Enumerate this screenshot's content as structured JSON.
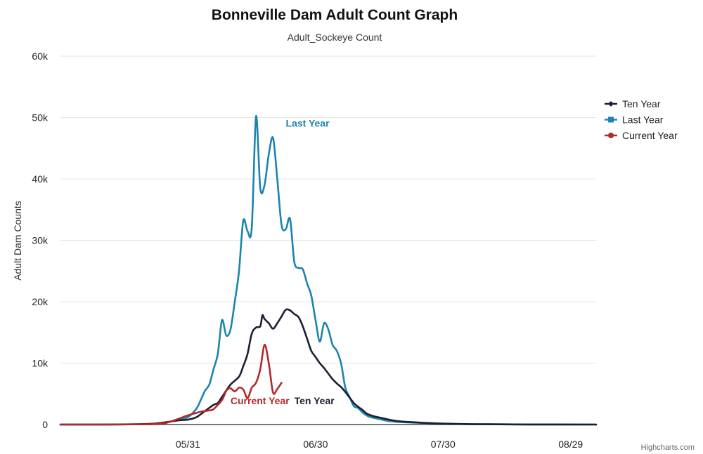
{
  "chart_data": {
    "type": "line",
    "title": "Bonneville Dam Adult Count Graph",
    "subtitle": "Adult_Sockeye Count",
    "ylabel": "Adult Dam Counts",
    "ylim": [
      0,
      60000
    ],
    "yticks": [
      {
        "value": 0,
        "label": "0"
      },
      {
        "value": 10000,
        "label": "10k"
      },
      {
        "value": 20000,
        "label": "20k"
      },
      {
        "value": 30000,
        "label": "30k"
      },
      {
        "value": 40000,
        "label": "40k"
      },
      {
        "value": 50000,
        "label": "50k"
      },
      {
        "value": 60000,
        "label": "60k"
      }
    ],
    "xlim": [
      0,
      126
    ],
    "xunit": "days since 05/01",
    "xticks": [
      {
        "day": 30,
        "label": "05/31"
      },
      {
        "day": 60,
        "label": "06/30"
      },
      {
        "day": 90,
        "label": "07/30"
      },
      {
        "day": 120,
        "label": "08/29"
      }
    ],
    "series": [
      {
        "name": "Ten Year",
        "color": "#1c1f33",
        "annotation": "Ten Year",
        "points": [
          [
            0,
            0
          ],
          [
            10,
            0
          ],
          [
            18,
            50
          ],
          [
            22,
            150
          ],
          [
            24,
            300
          ],
          [
            26,
            500
          ],
          [
            28,
            700
          ],
          [
            30,
            800
          ],
          [
            32,
            1200
          ],
          [
            34,
            2200
          ],
          [
            36,
            3200
          ],
          [
            37,
            3500
          ],
          [
            38,
            4500
          ],
          [
            40,
            6500
          ],
          [
            42,
            7800
          ],
          [
            43,
            9500
          ],
          [
            44,
            11500
          ],
          [
            45,
            14800
          ],
          [
            46,
            15800
          ],
          [
            47,
            16000
          ],
          [
            47.5,
            17800
          ],
          [
            48,
            17200
          ],
          [
            49,
            16500
          ],
          [
            50,
            15600
          ],
          [
            51,
            16500
          ],
          [
            52,
            17600
          ],
          [
            53,
            18700
          ],
          [
            54,
            18600
          ],
          [
            55,
            18000
          ],
          [
            56,
            17500
          ],
          [
            57,
            16000
          ],
          [
            58,
            14000
          ],
          [
            59,
            12000
          ],
          [
            60,
            11000
          ],
          [
            61,
            10000
          ],
          [
            62,
            9200
          ],
          [
            63,
            8300
          ],
          [
            64,
            7400
          ],
          [
            65,
            6700
          ],
          [
            66,
            6100
          ],
          [
            67,
            5300
          ],
          [
            68,
            4400
          ],
          [
            69,
            3500
          ],
          [
            70,
            2900
          ],
          [
            71,
            2400
          ],
          [
            72,
            1800
          ],
          [
            73,
            1500
          ],
          [
            74,
            1300
          ],
          [
            76,
            1000
          ],
          [
            78,
            700
          ],
          [
            80,
            500
          ],
          [
            85,
            300
          ],
          [
            90,
            150
          ],
          [
            95,
            80
          ],
          [
            100,
            40
          ],
          [
            110,
            15
          ],
          [
            126,
            0
          ]
        ]
      },
      {
        "name": "Last Year",
        "color": "#1c84ad",
        "annotation": "Last Year",
        "points": [
          [
            0,
            0
          ],
          [
            10,
            0
          ],
          [
            20,
            50
          ],
          [
            24,
            200
          ],
          [
            26,
            500
          ],
          [
            28,
            800
          ],
          [
            30,
            1200
          ],
          [
            32,
            2600
          ],
          [
            33,
            4000
          ],
          [
            34,
            5500
          ],
          [
            35,
            6500
          ],
          [
            36,
            9000
          ],
          [
            37,
            11500
          ],
          [
            38,
            17000
          ],
          [
            39,
            14500
          ],
          [
            40,
            15500
          ],
          [
            41,
            20000
          ],
          [
            42,
            25000
          ],
          [
            43,
            33200
          ],
          [
            44,
            31500
          ],
          [
            45,
            32000
          ],
          [
            46,
            50200
          ],
          [
            47,
            38500
          ],
          [
            48,
            39000
          ],
          [
            49,
            44000
          ],
          [
            50,
            46700
          ],
          [
            51,
            40000
          ],
          [
            52,
            32500
          ],
          [
            53,
            31800
          ],
          [
            54,
            33500
          ],
          [
            55,
            26500
          ],
          [
            56,
            25500
          ],
          [
            57,
            25300
          ],
          [
            58,
            23000
          ],
          [
            59,
            21000
          ],
          [
            60,
            17000
          ],
          [
            61,
            13500
          ],
          [
            62,
            16500
          ],
          [
            63,
            15500
          ],
          [
            64,
            13000
          ],
          [
            65,
            12000
          ],
          [
            66,
            10000
          ],
          [
            67,
            6000
          ],
          [
            68,
            4500
          ],
          [
            69,
            3000
          ],
          [
            70,
            2700
          ],
          [
            71,
            2000
          ],
          [
            72,
            1500
          ],
          [
            73,
            1200
          ],
          [
            75,
            900
          ],
          [
            77,
            600
          ],
          [
            80,
            400
          ],
          [
            85,
            250
          ],
          [
            90,
            150
          ],
          [
            95,
            80
          ],
          [
            100,
            40
          ],
          [
            110,
            15
          ],
          [
            126,
            0
          ]
        ]
      },
      {
        "name": "Current Year",
        "color": "#b22a2a",
        "annotation": "Current Year",
        "points": [
          [
            0,
            0
          ],
          [
            10,
            0
          ],
          [
            20,
            50
          ],
          [
            24,
            150
          ],
          [
            26,
            500
          ],
          [
            28,
            1000
          ],
          [
            30,
            1500
          ],
          [
            32,
            1900
          ],
          [
            33,
            2100
          ],
          [
            34,
            2200
          ],
          [
            35,
            2300
          ],
          [
            36,
            2500
          ],
          [
            38,
            4000
          ],
          [
            39,
            5500
          ],
          [
            40,
            5900
          ],
          [
            41,
            5400
          ],
          [
            42,
            6000
          ],
          [
            43,
            5700
          ],
          [
            44,
            4300
          ],
          [
            45,
            6000
          ],
          [
            46,
            6800
          ],
          [
            47,
            9000
          ],
          [
            48,
            13000
          ],
          [
            49,
            10000
          ],
          [
            50,
            5200
          ],
          [
            51,
            5800
          ],
          [
            52,
            6800
          ]
        ]
      }
    ],
    "legend": [
      "Ten Year",
      "Last Year",
      "Current Year"
    ],
    "legend_position": "right",
    "credit": "Highcharts.com"
  }
}
